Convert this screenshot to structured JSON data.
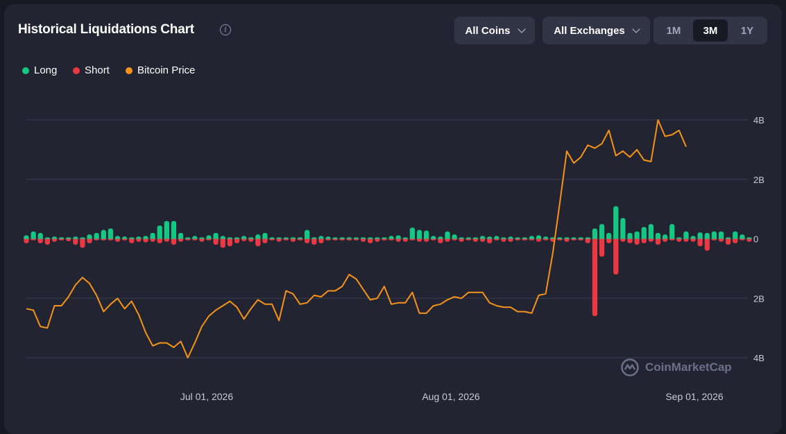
{
  "header": {
    "title": "Historical Liquidations Chart",
    "coins_label": "All Coins",
    "exchanges_label": "All Exchanges",
    "ranges": [
      "1M",
      "3M",
      "1Y"
    ],
    "active_range": "3M"
  },
  "legend": [
    {
      "label": "Long",
      "color": "#16c784"
    },
    {
      "label": "Short",
      "color": "#ea3943"
    },
    {
      "label": "Bitcoin Price",
      "color": "#f7931a"
    }
  ],
  "watermark": "CoinMarketCap",
  "chart_data": {
    "type": "bar",
    "xlabels": [
      "Jul 01, 2026",
      "Aug 01, 2026",
      "Sep 01, 2026"
    ],
    "y_ticks": [
      "4B",
      "2B",
      "0",
      "2B",
      "4B"
    ],
    "ylim": [
      -4,
      4
    ],
    "grid": true,
    "legend_position": "top-left",
    "series": [
      {
        "name": "Long",
        "color": "#16c784",
        "values": [
          0.12,
          0.25,
          0.2,
          0.05,
          0.08,
          0.05,
          0.05,
          0.08,
          0.05,
          0.15,
          0.2,
          0.3,
          0.35,
          0.1,
          0.08,
          0.05,
          0.08,
          0.1,
          0.2,
          0.45,
          0.6,
          0.6,
          0.2,
          0.05,
          0.1,
          0.05,
          0.12,
          0.2,
          0.1,
          0.05,
          0.05,
          0.1,
          0.05,
          0.15,
          0.2,
          0.05,
          0.05,
          0.05,
          0.05,
          0.05,
          0.3,
          0.05,
          0.1,
          0.08,
          0.05,
          0.05,
          0.05,
          0.05,
          0.05,
          0.05,
          0.05,
          0.05,
          0.1,
          0.12,
          0.05,
          0.38,
          0.3,
          0.28,
          0.1,
          0.08,
          0.25,
          0.15,
          0.05,
          0.05,
          0.05,
          0.1,
          0.08,
          0.1,
          0.05,
          0.08,
          0.05,
          0.05,
          0.1,
          0.12,
          0.08,
          0.05,
          0.05,
          0.05,
          0.05,
          0.05,
          0.05,
          0.35,
          0.5,
          0.2,
          1.1,
          0.7,
          0.2,
          0.25,
          0.4,
          0.5,
          0.2,
          0.15,
          0.5,
          0.05,
          0.25,
          0.1,
          0.22,
          0.2,
          0.25,
          0.25,
          0.05,
          0.25,
          0.15,
          0.05
        ]
      },
      {
        "name": "Short",
        "color": "#ea3943",
        "values": [
          -0.15,
          -0.05,
          -0.15,
          -0.2,
          -0.1,
          -0.05,
          -0.08,
          -0.2,
          -0.3,
          -0.15,
          -0.05,
          -0.05,
          -0.05,
          -0.1,
          -0.05,
          -0.15,
          -0.1,
          -0.12,
          -0.1,
          -0.15,
          -0.1,
          -0.2,
          -0.1,
          -0.05,
          -0.05,
          -0.1,
          -0.05,
          -0.2,
          -0.3,
          -0.25,
          -0.15,
          -0.08,
          -0.1,
          -0.25,
          -0.15,
          -0.05,
          -0.1,
          -0.05,
          -0.1,
          -0.05,
          -0.15,
          -0.2,
          -0.15,
          -0.05,
          -0.05,
          -0.05,
          -0.05,
          -0.05,
          -0.1,
          -0.15,
          -0.1,
          -0.05,
          -0.05,
          -0.1,
          -0.1,
          -0.05,
          -0.1,
          -0.1,
          -0.05,
          -0.15,
          -0.1,
          -0.05,
          -0.1,
          -0.05,
          -0.1,
          -0.1,
          -0.15,
          -0.05,
          -0.1,
          -0.1,
          -0.05,
          -0.05,
          -0.05,
          -0.1,
          -0.05,
          -0.1,
          -0.05,
          -0.1,
          -0.05,
          -0.05,
          -0.15,
          -2.6,
          -0.6,
          -0.15,
          -1.2,
          -0.1,
          -0.15,
          -0.2,
          -0.15,
          -0.1,
          -0.2,
          -0.1,
          -0.05,
          -0.1,
          -0.1,
          -0.1,
          -0.25,
          -0.4,
          -0.05,
          -0.1,
          -0.2,
          -0.15,
          -0.05,
          -0.1
        ]
      },
      {
        "name": "Bitcoin Price",
        "color": "#f7931a",
        "values": [
          -2.35,
          -2.4,
          -2.95,
          -3.0,
          -2.25,
          -2.25,
          -1.95,
          -1.55,
          -1.3,
          -1.5,
          -1.9,
          -2.45,
          -2.2,
          -2.0,
          -2.35,
          -2.1,
          -2.55,
          -3.15,
          -3.6,
          -3.5,
          -3.5,
          -3.65,
          -3.45,
          -4.0,
          -3.5,
          -2.95,
          -2.6,
          -2.4,
          -2.25,
          -2.1,
          -2.3,
          -2.7,
          -2.35,
          -2.05,
          -2.2,
          -2.2,
          -2.75,
          -1.75,
          -1.85,
          -2.2,
          -2.15,
          -1.9,
          -1.95,
          -1.75,
          -1.75,
          -1.6,
          -1.2,
          -1.35,
          -1.7,
          -2.05,
          -2.0,
          -1.6,
          -2.2,
          -2.15,
          -2.15,
          -1.8,
          -2.5,
          -2.5,
          -2.25,
          -2.2,
          -2.05,
          -1.95,
          -2.0,
          -1.8,
          -1.8,
          -1.8,
          -2.15,
          -2.25,
          -2.3,
          -2.3,
          -2.45,
          -2.45,
          -2.5,
          -1.9,
          -1.85,
          -0.5,
          1.2,
          2.95,
          2.55,
          2.75,
          3.15,
          3.05,
          3.2,
          3.65,
          2.8,
          2.95,
          2.75,
          3.0,
          2.65,
          2.6,
          4.0,
          3.45,
          3.5,
          3.65,
          3.1
        ]
      }
    ]
  }
}
